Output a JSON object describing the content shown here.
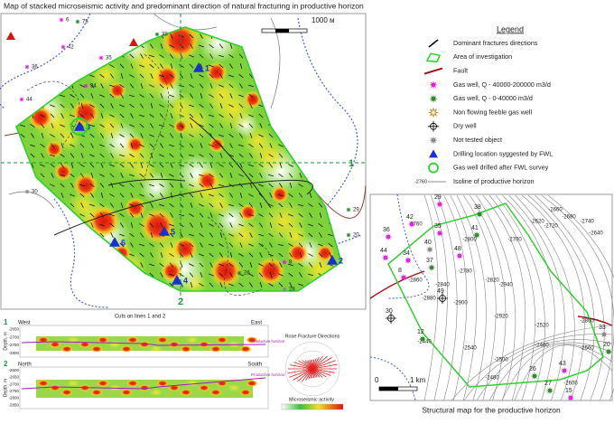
{
  "map": {
    "title": "Map of stacked microseismic activity and predominant direction of natural fracturing in productive horizon",
    "scale_label": "1000 м",
    "line_labels": [
      "1",
      "2"
    ],
    "wells": [
      "6",
      "75",
      "38",
      "42",
      "35",
      "36",
      "34",
      "44",
      "30",
      "29",
      "20",
      "26",
      "28",
      "8"
    ],
    "drill_locations": [
      "1",
      "2",
      "3",
      "4",
      "5",
      "6"
    ]
  },
  "legend": {
    "title": "Legend",
    "items": [
      "Dominant fractures directions",
      "Area of investigation",
      "Fault",
      "Gas well, Q - 40000-200000 m3/d",
      "Gas well, Q - 0-40000 m3/d",
      "Non flowing feeble gas well",
      "Dry well",
      "Not tested object",
      "Drilling location syggested by FWL",
      "Gas well drilled after FWL survey",
      "Isoline of productive horizon"
    ],
    "isoline_sample": "-2760"
  },
  "cuts": {
    "title": "Cuts on lines 1 and 2",
    "depth_label": "Depth, m",
    "horizon_label": "Productive horizon",
    "panels": [
      {
        "number": "1",
        "left": "West",
        "right": "East",
        "depths": [
          "-2650",
          "-2700",
          "-2750",
          "-2800"
        ]
      },
      {
        "number": "2",
        "left": "North",
        "right": "South",
        "depths": [
          "-2600",
          "-2650",
          "-2700",
          "-2750",
          "-2800",
          "-2850"
        ]
      }
    ]
  },
  "rose": {
    "title": "Rose Fracture Directions"
  },
  "activity_scale": {
    "title": "Microseismic activity"
  },
  "structural_map": {
    "caption": "Structural map for the productive horizon",
    "scale_zero": "0",
    "scale_label": "1 km",
    "wells": [
      "29",
      "38",
      "42",
      "35",
      "36",
      "40",
      "41",
      "44",
      "34",
      "37",
      "48",
      "8",
      "49",
      "30",
      "12",
      "33",
      "20",
      "43",
      "26",
      "27",
      "15"
    ],
    "contours": [
      "-2760",
      "-2780",
      "-2800",
      "-2820",
      "-2840",
      "-2860",
      "-2880",
      "-2900",
      "-2920",
      "-2940",
      "-2700",
      "-2720",
      "-2740",
      "-2660",
      "-2680",
      "-2620",
      "-2640",
      "-2560",
      "-2540",
      "-2500",
      "-2480",
      "-2460",
      "-2440",
      "-2600",
      "-2520",
      "-2800"
    ]
  }
}
